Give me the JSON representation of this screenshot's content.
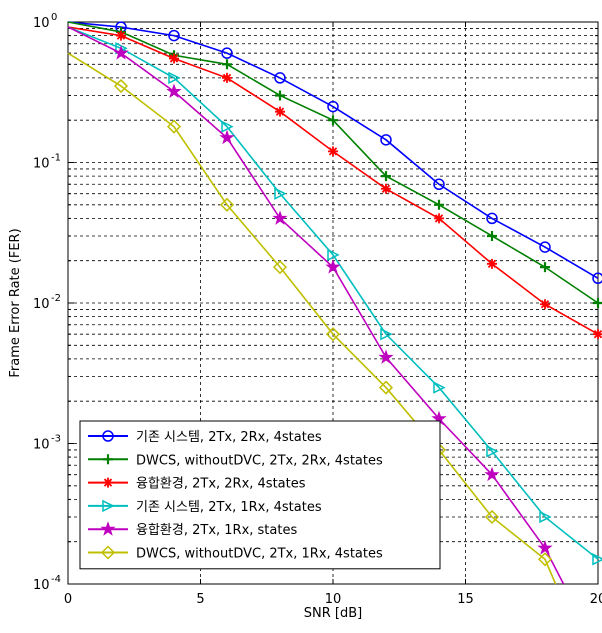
{
  "chart_data": {
    "type": "line",
    "title": "",
    "xlabel": "SNR [dB]",
    "ylabel": "Frame Error Rate (FER)",
    "xlim": [
      0,
      20
    ],
    "ylim": [
      0.0001,
      1
    ],
    "yscale": "log",
    "grid": true,
    "legend_placement": "bottom-left",
    "x_ticks": [
      "0",
      "5",
      "10",
      "15",
      "20"
    ],
    "y_ticks": [
      {
        "base": "10",
        "exp": "0"
      },
      {
        "base": "10",
        "exp": "-1"
      },
      {
        "base": "10",
        "exp": "-2"
      },
      {
        "base": "10",
        "exp": "-3"
      },
      {
        "base": "10",
        "exp": "-4"
      }
    ],
    "series": [
      {
        "name": "기존 시스템, 2Tx, 2Rx, 4states",
        "color": "#0000ff",
        "marker": "circle",
        "x": [
          0,
          2,
          4,
          6,
          8,
          10,
          12,
          14,
          16,
          18,
          20
        ],
        "y": [
          1.0,
          0.92,
          0.8,
          0.6,
          0.4,
          0.25,
          0.145,
          0.07,
          0.04,
          0.025,
          0.015
        ]
      },
      {
        "name": "DWCS, withoutDVC, 2Tx, 2Rx, 4states",
        "color": "#008000",
        "marker": "plus",
        "x": [
          0,
          2,
          4,
          6,
          8,
          10,
          12,
          14,
          16,
          18,
          20
        ],
        "y": [
          1.0,
          0.85,
          0.58,
          0.5,
          0.3,
          0.2,
          0.08,
          0.05,
          0.03,
          0.018,
          0.01
        ]
      },
      {
        "name": "융합환경, 2Tx, 2Rx, 4states",
        "color": "#ff0000",
        "marker": "star",
        "x": [
          0,
          2,
          4,
          6,
          8,
          10,
          12,
          14,
          16,
          18,
          20
        ],
        "y": [
          0.92,
          0.8,
          0.55,
          0.4,
          0.23,
          0.12,
          0.065,
          0.04,
          0.019,
          0.0098,
          0.006
        ]
      },
      {
        "name": "기존 시스템, 2Tx, 1Rx, 4states",
        "color": "#00bfbf",
        "marker": "triangle-right",
        "x": [
          0,
          2,
          4,
          6,
          8,
          10,
          12,
          14,
          16,
          18,
          20
        ],
        "y": [
          0.92,
          0.65,
          0.4,
          0.18,
          0.06,
          0.022,
          0.006,
          0.0025,
          0.00088,
          0.0003,
          0.00015
        ]
      },
      {
        "name": "융합환경, 2Tx, 1Rx, states",
        "color": "#bf00bf",
        "marker": "pentagram",
        "x": [
          0,
          2,
          4,
          6,
          8,
          10,
          12,
          14,
          16,
          18,
          18.7
        ],
        "y": [
          0.92,
          0.6,
          0.32,
          0.15,
          0.04,
          0.018,
          0.0041,
          0.0015,
          0.0006,
          0.00018,
          0.0001
        ]
      },
      {
        "name": "DWCS, withoutDVC, 2Tx, 1Rx, 4states",
        "color": "#bfbf00",
        "marker": "diamond",
        "x": [
          0,
          2,
          4,
          6,
          8,
          10,
          12,
          14,
          16,
          18,
          18.4
        ],
        "y": [
          0.6,
          0.35,
          0.18,
          0.05,
          0.018,
          0.006,
          0.0025,
          0.0009,
          0.0003,
          0.00015,
          0.0001
        ]
      }
    ]
  }
}
